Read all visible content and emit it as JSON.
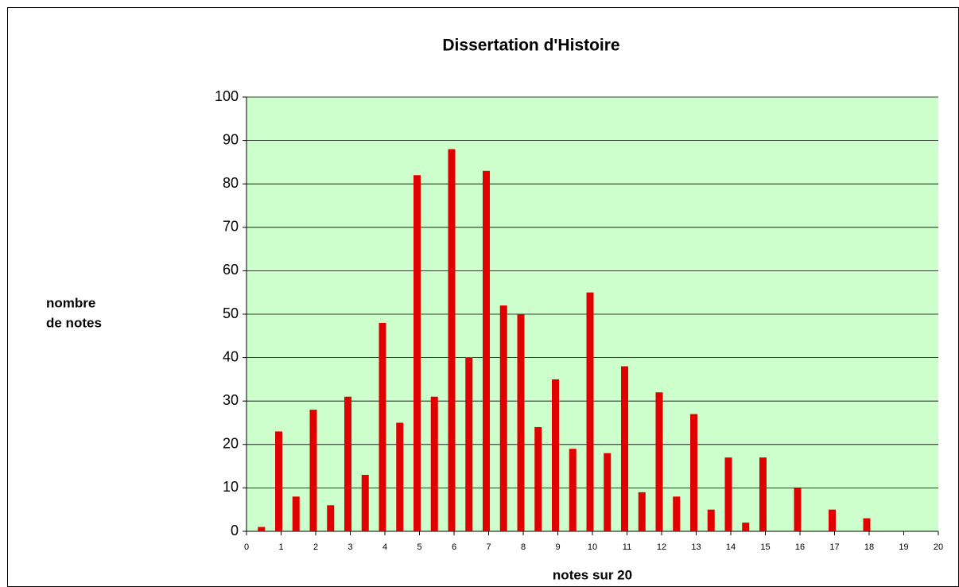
{
  "chart_data": {
    "type": "bar",
    "title": "Dissertation d'Histoire",
    "xlabel": "notes sur 20",
    "ylabel": [
      "nombre",
      "de notes"
    ],
    "x": [
      0.5,
      1,
      1.5,
      2,
      2.5,
      3,
      3.5,
      4,
      4.5,
      5,
      5.5,
      6,
      6.5,
      7,
      7.5,
      8,
      8.5,
      9,
      9.5,
      10,
      10.5,
      11,
      11.5,
      12,
      12.5,
      13,
      13.5,
      14,
      14.5,
      15,
      16,
      17,
      18
    ],
    "values": [
      1,
      23,
      8,
      28,
      6,
      31,
      13,
      48,
      25,
      82,
      31,
      88,
      40,
      83,
      52,
      50,
      24,
      35,
      19,
      55,
      18,
      38,
      9,
      32,
      8,
      27,
      5,
      17,
      2,
      17,
      10,
      5,
      3
    ],
    "color": "#e00000",
    "background": "#ccffcc",
    "xlim": [
      0,
      20
    ],
    "xticks": [
      0,
      1,
      2,
      3,
      4,
      5,
      6,
      7,
      8,
      9,
      10,
      11,
      12,
      13,
      14,
      15,
      16,
      17,
      18,
      19,
      20
    ],
    "ylim": [
      0,
      100
    ],
    "yticks": [
      0,
      10,
      20,
      30,
      40,
      50,
      60,
      70,
      80,
      90,
      100
    ],
    "grid": true
  }
}
